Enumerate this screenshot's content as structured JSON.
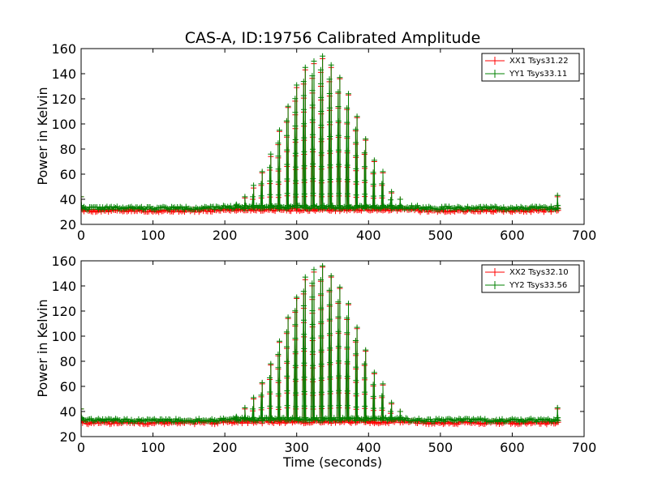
{
  "figure": {
    "title": "CAS-A, ID:19756 Calibrated Amplitude",
    "xlabel": "Time (seconds)",
    "colors": {
      "xx": "#ff0000",
      "yy": "#008000",
      "axes": "#000000",
      "background": "#ffffff"
    }
  },
  "chart_data": [
    {
      "type": "line",
      "title": "CAS-A, ID:19756 Calibrated Amplitude",
      "xlabel": "",
      "ylabel": "Power in Kelvin",
      "xlim": [
        0,
        700
      ],
      "ylim": [
        20,
        160
      ],
      "xticks": [
        "0",
        "100",
        "200",
        "300",
        "400",
        "500",
        "600",
        "700"
      ],
      "yticks": [
        "20",
        "40",
        "60",
        "80",
        "100",
        "120",
        "140",
        "160"
      ],
      "grid": false,
      "legend": "top-right",
      "markers": "plus",
      "x_range_data": [
        0,
        665
      ],
      "series": [
        {
          "name": "XX1 Tsys31.22",
          "color": "#ff0000",
          "baseline": 31,
          "peaks": [
            {
              "x": 0,
              "y": 42
            },
            {
              "x": 216,
              "y": 35
            },
            {
              "x": 228,
              "y": 41
            },
            {
              "x": 240,
              "y": 49
            },
            {
              "x": 252,
              "y": 61
            },
            {
              "x": 264,
              "y": 74
            },
            {
              "x": 276,
              "y": 94
            },
            {
              "x": 288,
              "y": 113
            },
            {
              "x": 300,
              "y": 129
            },
            {
              "x": 312,
              "y": 143
            },
            {
              "x": 324,
              "y": 148
            },
            {
              "x": 336,
              "y": 152
            },
            {
              "x": 348,
              "y": 145
            },
            {
              "x": 360,
              "y": 136
            },
            {
              "x": 372,
              "y": 123
            },
            {
              "x": 384,
              "y": 105
            },
            {
              "x": 396,
              "y": 87
            },
            {
              "x": 408,
              "y": 70
            },
            {
              "x": 420,
              "y": 61
            },
            {
              "x": 432,
              "y": 45
            },
            {
              "x": 444,
              "y": 40
            },
            {
              "x": 663,
              "y": 42
            }
          ]
        },
        {
          "name": "YY1 Tsys33.11",
          "color": "#008000",
          "baseline": 33,
          "peaks": [
            {
              "x": 0,
              "y": 42
            },
            {
              "x": 216,
              "y": 36
            },
            {
              "x": 228,
              "y": 42
            },
            {
              "x": 240,
              "y": 51
            },
            {
              "x": 252,
              "y": 62
            },
            {
              "x": 264,
              "y": 76
            },
            {
              "x": 276,
              "y": 95
            },
            {
              "x": 288,
              "y": 114
            },
            {
              "x": 300,
              "y": 131
            },
            {
              "x": 312,
              "y": 145
            },
            {
              "x": 324,
              "y": 150
            },
            {
              "x": 336,
              "y": 154
            },
            {
              "x": 348,
              "y": 147
            },
            {
              "x": 360,
              "y": 137
            },
            {
              "x": 372,
              "y": 124
            },
            {
              "x": 384,
              "y": 106
            },
            {
              "x": 396,
              "y": 88
            },
            {
              "x": 408,
              "y": 71
            },
            {
              "x": 420,
              "y": 62
            },
            {
              "x": 432,
              "y": 46
            },
            {
              "x": 444,
              "y": 40
            },
            {
              "x": 663,
              "y": 43
            }
          ]
        }
      ]
    },
    {
      "type": "line",
      "title": "",
      "xlabel": "Time (seconds)",
      "ylabel": "Power in Kelvin",
      "xlim": [
        0,
        700
      ],
      "ylim": [
        20,
        160
      ],
      "xticks": [
        "0",
        "100",
        "200",
        "300",
        "400",
        "500",
        "600",
        "700"
      ],
      "yticks": [
        "20",
        "40",
        "60",
        "80",
        "100",
        "120",
        "140",
        "160"
      ],
      "grid": false,
      "legend": "top-right",
      "markers": "plus",
      "x_range_data": [
        0,
        665
      ],
      "series": [
        {
          "name": "XX2 Tsys32.10",
          "color": "#ff0000",
          "baseline": 31,
          "peaks": [
            {
              "x": 0,
              "y": 42
            },
            {
              "x": 216,
              "y": 35
            },
            {
              "x": 228,
              "y": 42
            },
            {
              "x": 240,
              "y": 50
            },
            {
              "x": 252,
              "y": 62
            },
            {
              "x": 264,
              "y": 77
            },
            {
              "x": 276,
              "y": 95
            },
            {
              "x": 288,
              "y": 114
            },
            {
              "x": 300,
              "y": 130
            },
            {
              "x": 312,
              "y": 145
            },
            {
              "x": 324,
              "y": 151
            },
            {
              "x": 336,
              "y": 155
            },
            {
              "x": 348,
              "y": 147
            },
            {
              "x": 360,
              "y": 138
            },
            {
              "x": 372,
              "y": 125
            },
            {
              "x": 384,
              "y": 106
            },
            {
              "x": 396,
              "y": 88
            },
            {
              "x": 408,
              "y": 70
            },
            {
              "x": 420,
              "y": 61
            },
            {
              "x": 432,
              "y": 46
            },
            {
              "x": 444,
              "y": 40
            },
            {
              "x": 663,
              "y": 42
            }
          ]
        },
        {
          "name": "YY2 Tsys33.56",
          "color": "#008000",
          "baseline": 33,
          "peaks": [
            {
              "x": 0,
              "y": 42
            },
            {
              "x": 216,
              "y": 36
            },
            {
              "x": 228,
              "y": 43
            },
            {
              "x": 240,
              "y": 51
            },
            {
              "x": 252,
              "y": 63
            },
            {
              "x": 264,
              "y": 78
            },
            {
              "x": 276,
              "y": 96
            },
            {
              "x": 288,
              "y": 115
            },
            {
              "x": 300,
              "y": 131
            },
            {
              "x": 312,
              "y": 147
            },
            {
              "x": 324,
              "y": 153
            },
            {
              "x": 336,
              "y": 156
            },
            {
              "x": 348,
              "y": 148
            },
            {
              "x": 360,
              "y": 139
            },
            {
              "x": 372,
              "y": 126
            },
            {
              "x": 384,
              "y": 107
            },
            {
              "x": 396,
              "y": 89
            },
            {
              "x": 408,
              "y": 71
            },
            {
              "x": 420,
              "y": 62
            },
            {
              "x": 432,
              "y": 47
            },
            {
              "x": 444,
              "y": 40
            },
            {
              "x": 663,
              "y": 43
            }
          ]
        }
      ]
    }
  ]
}
